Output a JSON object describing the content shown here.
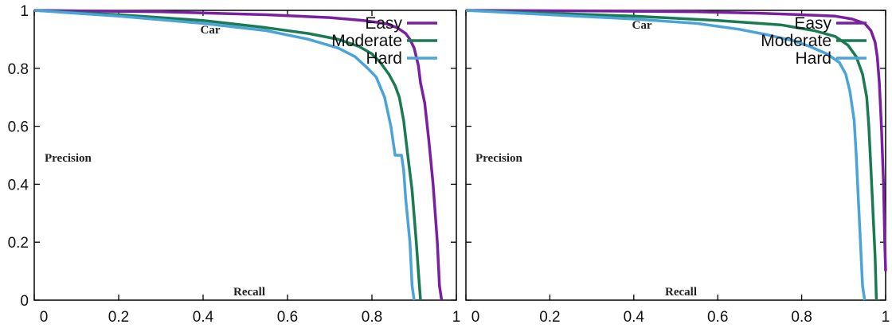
{
  "chart_data": [
    {
      "type": "line",
      "title": "Car",
      "xlabel": "Recall",
      "ylabel": "Precision",
      "xlim": [
        0,
        1
      ],
      "ylim": [
        0,
        1
      ],
      "x_ticks": [
        "0",
        "0.2",
        "0.4",
        "0.6",
        "0.8",
        "1"
      ],
      "y_ticks": [
        "0",
        "0.2",
        "0.4",
        "0.6",
        "0.8",
        "1"
      ],
      "grid": false,
      "legend_position": "top-right",
      "series": [
        {
          "name": "Easy",
          "color": "#7b1fa2",
          "points": [
            [
              0,
              1
            ],
            [
              0.3,
              0.995
            ],
            [
              0.55,
              0.985
            ],
            [
              0.7,
              0.975
            ],
            [
              0.78,
              0.965
            ],
            [
              0.83,
              0.955
            ],
            [
              0.86,
              0.94
            ],
            [
              0.88,
              0.92
            ],
            [
              0.89,
              0.9
            ],
            [
              0.9,
              0.87
            ],
            [
              0.91,
              0.81
            ],
            [
              0.915,
              0.75
            ],
            [
              0.925,
              0.68
            ],
            [
              0.935,
              0.55
            ],
            [
              0.945,
              0.4
            ],
            [
              0.955,
              0.2
            ],
            [
              0.96,
              0.05
            ],
            [
              0.965,
              0
            ]
          ]
        },
        {
          "name": "Moderate",
          "color": "#1a7a52",
          "points": [
            [
              0,
              1
            ],
            [
              0.2,
              0.985
            ],
            [
              0.4,
              0.965
            ],
            [
              0.55,
              0.94
            ],
            [
              0.65,
              0.92
            ],
            [
              0.72,
              0.9
            ],
            [
              0.77,
              0.875
            ],
            [
              0.8,
              0.85
            ],
            [
              0.82,
              0.82
            ],
            [
              0.84,
              0.78
            ],
            [
              0.855,
              0.74
            ],
            [
              0.865,
              0.7
            ],
            [
              0.875,
              0.62
            ],
            [
              0.885,
              0.5
            ],
            [
              0.895,
              0.38
            ],
            [
              0.905,
              0.2
            ],
            [
              0.91,
              0.1
            ],
            [
              0.915,
              0
            ]
          ]
        },
        {
          "name": "Hard",
          "color": "#4aa3d9",
          "points": [
            [
              0,
              1
            ],
            [
              0.2,
              0.98
            ],
            [
              0.4,
              0.955
            ],
            [
              0.55,
              0.93
            ],
            [
              0.65,
              0.9
            ],
            [
              0.72,
              0.87
            ],
            [
              0.76,
              0.84
            ],
            [
              0.79,
              0.8
            ],
            [
              0.81,
              0.77
            ],
            [
              0.83,
              0.7
            ],
            [
              0.845,
              0.6
            ],
            [
              0.855,
              0.5
            ],
            [
              0.87,
              0.5
            ],
            [
              0.875,
              0.45
            ],
            [
              0.88,
              0.35
            ],
            [
              0.89,
              0.2
            ],
            [
              0.895,
              0.05
            ],
            [
              0.9,
              0
            ]
          ]
        }
      ]
    },
    {
      "type": "line",
      "title": "Car",
      "xlabel": "Recall",
      "ylabel": "Precision",
      "xlim": [
        0,
        1
      ],
      "ylim": [
        0,
        1
      ],
      "x_ticks": [
        "0",
        "0.2",
        "0.4",
        "0.6",
        "0.8",
        "1"
      ],
      "y_ticks": [
        "",
        "",
        "",
        "",
        "",
        ""
      ],
      "grid": false,
      "legend_position": "top-right",
      "series": [
        {
          "name": "Easy",
          "color": "#7b1fa2",
          "points": [
            [
              0,
              1
            ],
            [
              0.3,
              0.998
            ],
            [
              0.55,
              0.995
            ],
            [
              0.7,
              0.99
            ],
            [
              0.8,
              0.985
            ],
            [
              0.88,
              0.98
            ],
            [
              0.92,
              0.97
            ],
            [
              0.95,
              0.955
            ],
            [
              0.965,
              0.93
            ],
            [
              0.975,
              0.89
            ],
            [
              0.98,
              0.84
            ],
            [
              0.985,
              0.75
            ],
            [
              0.99,
              0.6
            ],
            [
              0.995,
              0.4
            ],
            [
              0.998,
              0.2
            ],
            [
              1,
              0.1
            ]
          ]
        },
        {
          "name": "Moderate",
          "color": "#1a7a52",
          "points": [
            [
              0,
              1
            ],
            [
              0.2,
              0.99
            ],
            [
              0.4,
              0.98
            ],
            [
              0.6,
              0.965
            ],
            [
              0.75,
              0.95
            ],
            [
              0.83,
              0.93
            ],
            [
              0.88,
              0.91
            ],
            [
              0.91,
              0.88
            ],
            [
              0.93,
              0.84
            ],
            [
              0.945,
              0.78
            ],
            [
              0.955,
              0.7
            ],
            [
              0.96,
              0.6
            ],
            [
              0.965,
              0.45
            ],
            [
              0.97,
              0.3
            ],
            [
              0.975,
              0.15
            ],
            [
              0.978,
              0
            ]
          ]
        },
        {
          "name": "Hard",
          "color": "#4aa3d9",
          "points": [
            [
              0,
              1
            ],
            [
              0.2,
              0.985
            ],
            [
              0.4,
              0.97
            ],
            [
              0.55,
              0.955
            ],
            [
              0.65,
              0.935
            ],
            [
              0.72,
              0.915
            ],
            [
              0.78,
              0.895
            ],
            [
              0.82,
              0.875
            ],
            [
              0.86,
              0.85
            ],
            [
              0.89,
              0.82
            ],
            [
              0.905,
              0.78
            ],
            [
              0.915,
              0.72
            ],
            [
              0.925,
              0.62
            ],
            [
              0.93,
              0.5
            ],
            [
              0.935,
              0.35
            ],
            [
              0.94,
              0.2
            ],
            [
              0.945,
              0.05
            ],
            [
              0.95,
              0
            ]
          ]
        }
      ]
    }
  ]
}
